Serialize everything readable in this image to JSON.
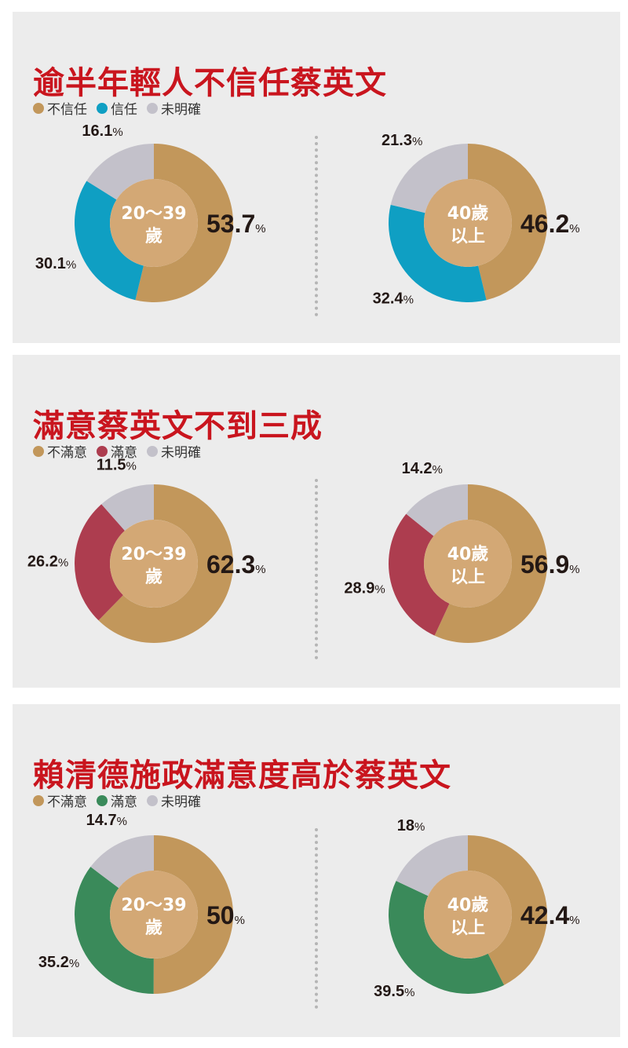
{
  "colors": {
    "title": "#c9151e",
    "tan": "#c2975b",
    "center": "#d3a875",
    "blue": "#0f9fc3",
    "red": "#ad3d4f",
    "green": "#3a8a5a",
    "gray": "#c3c1ca"
  },
  "panels": [
    {
      "title": "逾半年輕人不信任蔡英文",
      "legend": [
        {
          "label": "不信任",
          "color": "#c2975b"
        },
        {
          "label": "信任",
          "color": "#0f9fc3"
        },
        {
          "label": "未明確",
          "color": "#c3c1ca"
        }
      ]
    },
    {
      "title": "滿意蔡英文不到三成",
      "legend": [
        {
          "label": "不滿意",
          "color": "#c2975b"
        },
        {
          "label": "滿意",
          "color": "#ad3d4f"
        },
        {
          "label": "未明確",
          "color": "#c3c1ca"
        }
      ]
    },
    {
      "title": "賴清德施政滿意度高於蔡英文",
      "legend": [
        {
          "label": "不滿意",
          "color": "#c2975b"
        },
        {
          "label": "滿意",
          "color": "#3a8a5a"
        },
        {
          "label": "未明確",
          "color": "#c3c1ca"
        }
      ]
    }
  ],
  "chart_data": [
    {
      "type": "pie",
      "group": [
        "20～39",
        "歲"
      ],
      "labels": [
        "不信任",
        "信任",
        "未明確"
      ],
      "values": [
        53.7,
        30.1,
        16.1
      ],
      "display": [
        "53.7",
        "30.1",
        "16.1"
      ],
      "colors": [
        "#c2975b",
        "#0f9fc3",
        "#c3c1ca"
      ]
    },
    {
      "type": "pie",
      "group": [
        "40歲",
        "以上"
      ],
      "labels": [
        "不信任",
        "信任",
        "未明確"
      ],
      "values": [
        46.2,
        32.4,
        21.3
      ],
      "display": [
        "46.2",
        "32.4",
        "21.3"
      ],
      "colors": [
        "#c2975b",
        "#0f9fc3",
        "#c3c1ca"
      ]
    },
    {
      "type": "pie",
      "group": [
        "20～39",
        "歲"
      ],
      "labels": [
        "不滿意",
        "滿意",
        "未明確"
      ],
      "values": [
        62.3,
        26.2,
        11.5
      ],
      "display": [
        "62.3",
        "26.2",
        "11.5"
      ],
      "colors": [
        "#c2975b",
        "#ad3d4f",
        "#c3c1ca"
      ]
    },
    {
      "type": "pie",
      "group": [
        "40歲",
        "以上"
      ],
      "labels": [
        "不滿意",
        "滿意",
        "未明確"
      ],
      "values": [
        56.9,
        28.9,
        14.2
      ],
      "display": [
        "56.9",
        "28.9",
        "14.2"
      ],
      "colors": [
        "#c2975b",
        "#ad3d4f",
        "#c3c1ca"
      ]
    },
    {
      "type": "pie",
      "group": [
        "20～39",
        "歲"
      ],
      "labels": [
        "不滿意",
        "滿意",
        "未明確"
      ],
      "values": [
        50,
        35.2,
        14.7
      ],
      "display": [
        "50",
        "35.2",
        "14.7"
      ],
      "colors": [
        "#c2975b",
        "#3a8a5a",
        "#c3c1ca"
      ]
    },
    {
      "type": "pie",
      "group": [
        "40歲",
        "以上"
      ],
      "labels": [
        "不滿意",
        "滿意",
        "未明確"
      ],
      "values": [
        42.4,
        39.5,
        18
      ],
      "display": [
        "42.4",
        "39.5",
        "18"
      ],
      "colors": [
        "#c2975b",
        "#3a8a5a",
        "#c3c1ca"
      ]
    }
  ],
  "percent_sign": "%"
}
